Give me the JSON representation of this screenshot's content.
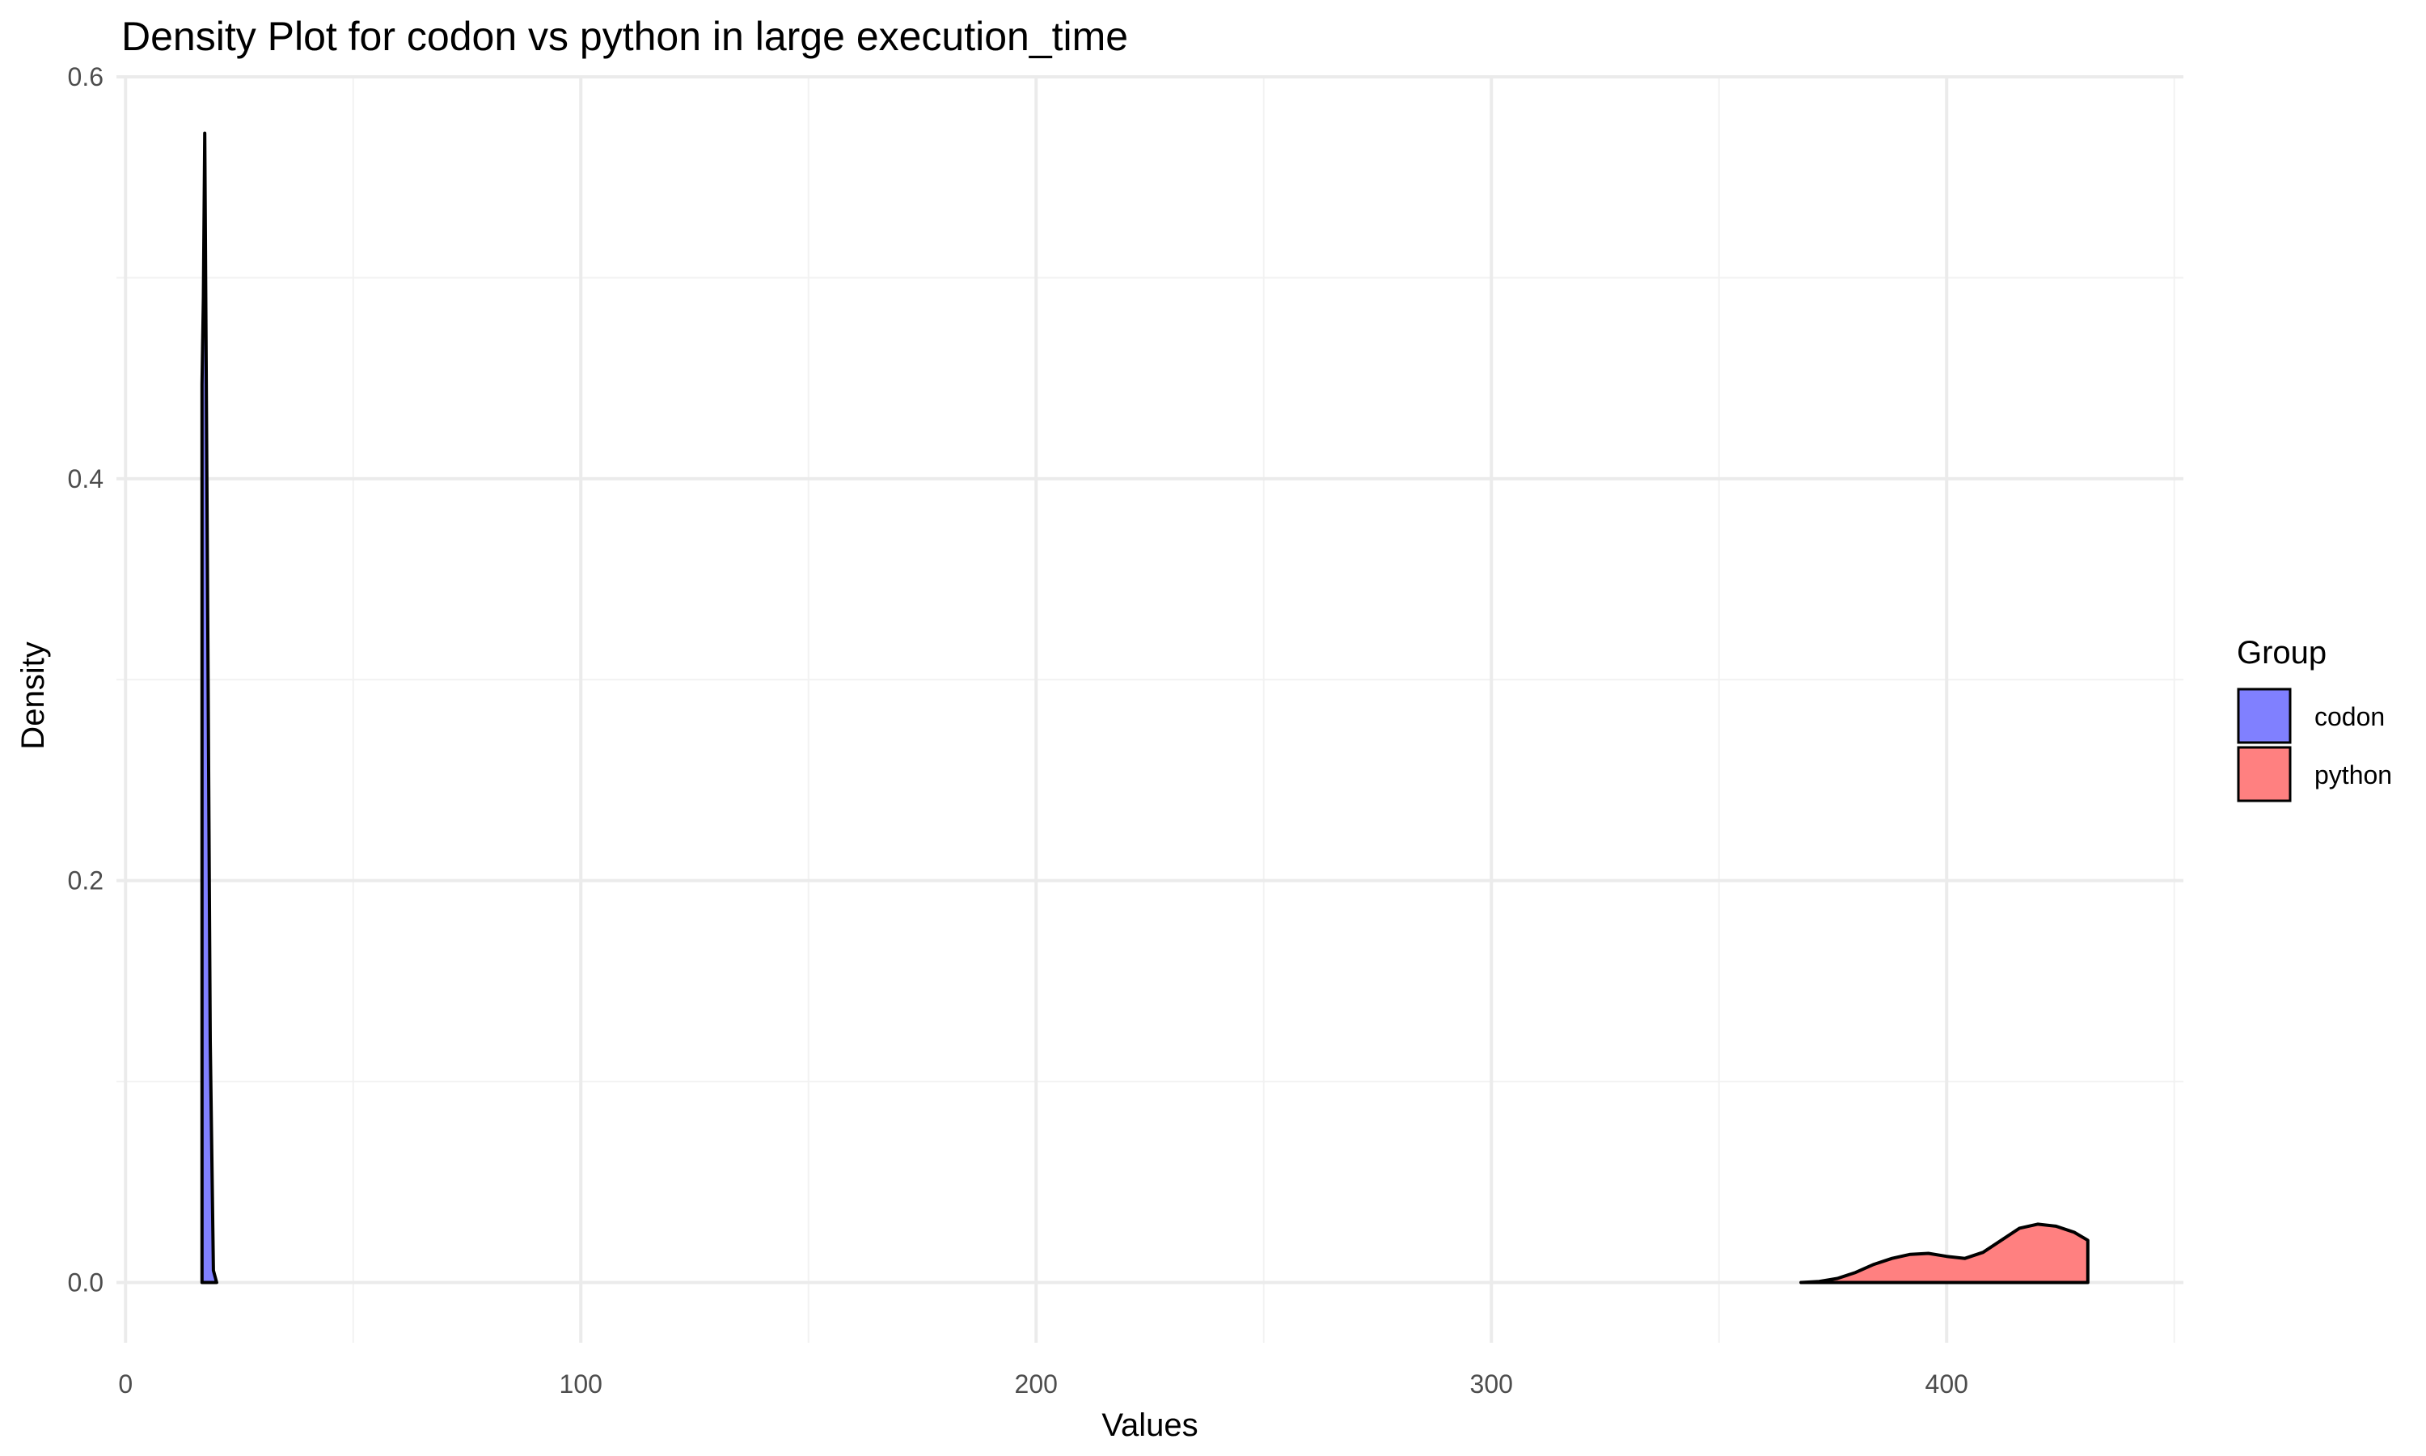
{
  "chart_data": {
    "type": "area",
    "title": "Density Plot for codon vs python in large execution_time",
    "xlabel": "Values",
    "ylabel": "Density",
    "xlim": [
      -2,
      452
    ],
    "ylim": [
      -0.03,
      0.6
    ],
    "x_ticks": [
      0,
      100,
      200,
      300,
      400
    ],
    "x_tick_labels": [
      "0",
      "100",
      "200",
      "300",
      "400"
    ],
    "y_ticks": [
      0.0,
      0.2,
      0.4,
      0.6
    ],
    "y_tick_labels": [
      "0.0",
      "0.2",
      "0.4",
      "0.6"
    ],
    "x_minor_ticks": [
      50,
      150,
      250,
      350,
      450
    ],
    "y_minor_ticks": [
      0.1,
      0.3,
      0.5
    ],
    "grid": true,
    "legend": {
      "title": "Group",
      "position": "right"
    },
    "series": [
      {
        "name": "codon",
        "color": "#8080ff",
        "x": [
          16.8,
          17.1,
          17.4,
          18.0,
          18.6,
          19.3,
          20.0
        ],
        "y": [
          0.447,
          0.49,
          0.572,
          0.35,
          0.12,
          0.006,
          0.0
        ]
      },
      {
        "name": "python",
        "color": "#ff8080",
        "x": [
          368,
          372,
          376,
          380,
          384,
          388,
          392,
          396,
          400,
          404,
          408,
          412,
          416,
          420,
          424,
          428,
          431
        ],
        "y": [
          0.0,
          0.0005,
          0.002,
          0.005,
          0.009,
          0.012,
          0.014,
          0.0145,
          0.013,
          0.012,
          0.015,
          0.021,
          0.027,
          0.029,
          0.028,
          0.025,
          0.021
        ]
      }
    ]
  }
}
